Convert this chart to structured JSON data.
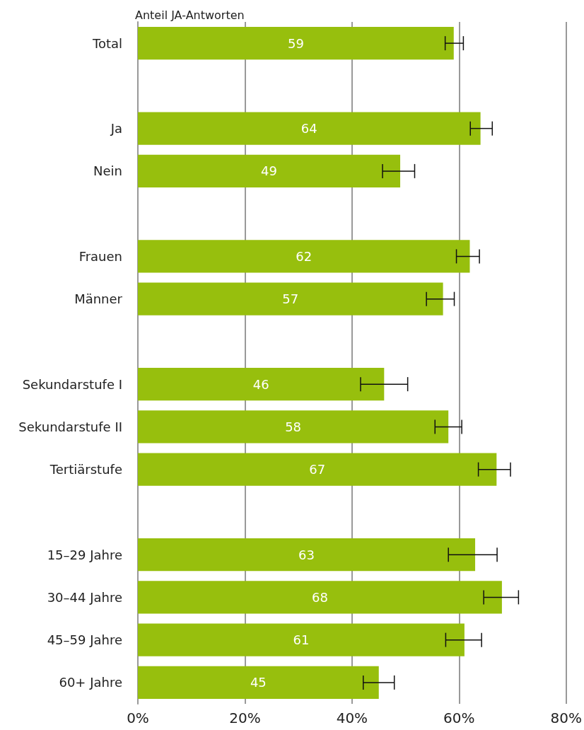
{
  "chart_data": {
    "type": "bar",
    "orientation": "horizontal",
    "title": "Anteil JA-Antworten",
    "categories": [
      "Total",
      null,
      "Ja",
      "Nein",
      null,
      "Frauen",
      "Männer",
      null,
      "Sekundarstufe I",
      "Sekundarstufe II",
      "Tertiärstufe",
      null,
      "15–29 Jahre",
      "30–44 Jahre",
      "45–59 Jahre",
      "60+ Jahre"
    ],
    "values": [
      59,
      null,
      64,
      49,
      null,
      62,
      57,
      null,
      46,
      58,
      67,
      null,
      63,
      68,
      61,
      45
    ],
    "errors": [
      [
        57.4,
        60.8
      ],
      null,
      [
        62.1,
        66.2
      ],
      [
        45.7,
        51.7
      ],
      null,
      [
        59.5,
        63.8
      ],
      [
        53.9,
        59.1
      ],
      null,
      [
        41.6,
        50.4
      ],
      [
        55.5,
        60.5
      ],
      [
        63.6,
        69.6
      ],
      null,
      [
        58.0,
        67.1
      ],
      [
        64.6,
        71.1
      ],
      [
        57.5,
        64.2
      ],
      [
        42.1,
        47.9
      ]
    ],
    "color": "#97bf0d",
    "data_labels": true,
    "grid": "x",
    "xlim": [
      0,
      80
    ],
    "xticks": [
      {
        "value": 0,
        "label": "0%"
      },
      {
        "value": 20,
        "label": "20%"
      },
      {
        "value": 40,
        "label": "40%"
      },
      {
        "value": 60,
        "label": "60%"
      },
      {
        "value": 80,
        "label": "80%"
      }
    ]
  }
}
